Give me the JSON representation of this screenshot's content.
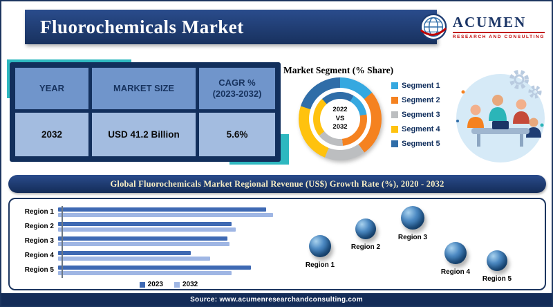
{
  "header": {
    "title": "Fluorochemicals Market",
    "logo": {
      "name": "ACUMEN",
      "subtitle": "RESEARCH AND CONSULTING"
    }
  },
  "summary_table": {
    "columns": [
      {
        "header": "YEAR",
        "value": "2032"
      },
      {
        "header": "MARKET SIZE",
        "value": "USD 41.2 Billion"
      },
      {
        "header": "CAGR %\n(2023-2032)",
        "value": "5.6%"
      }
    ]
  },
  "chart_data": [
    {
      "type": "pie",
      "donut": true,
      "title": "Market Segment (% Share)",
      "center_label": "2022\nVS\n2032",
      "labels": [
        "Segment 1",
        "Segment 2",
        "Segment 3",
        "Segment 4",
        "Segment 5"
      ],
      "values": [
        14,
        26,
        16,
        24,
        20
      ],
      "colors": [
        "#35A8E0",
        "#F58220",
        "#BCBEC0",
        "#FFC20E",
        "#2F6DA8"
      ],
      "legend_position": "right"
    },
    {
      "type": "bar",
      "orientation": "horizontal",
      "title": "Global Fluorochemicals Market Regional Revenue (US$) Growth Rate (%), 2020 - 2032",
      "categories": [
        "Region 1",
        "Region 2",
        "Region 3",
        "Region 4",
        "Region 5"
      ],
      "series": [
        {
          "name": "2023",
          "color": "#3E69B3",
          "values": [
            9.6,
            8.0,
            7.8,
            6.1,
            8.9
          ]
        },
        {
          "name": "2032",
          "color": "#9FB6E4",
          "values": [
            9.9,
            8.2,
            7.9,
            7.0,
            8.0
          ]
        }
      ],
      "xlim": [
        0,
        10
      ],
      "grid": false,
      "legend_position": "bottom"
    }
  ],
  "region_markers": [
    "Region 1",
    "Region 2",
    "Region 3",
    "Region 4",
    "Region 5"
  ],
  "footer": {
    "text": "Source: www.acumenresearchandconsulting.com"
  },
  "icons": {
    "logo": "globe-icon",
    "decorative": [
      "gear-icon",
      "team-illustration"
    ]
  },
  "colors": {
    "navy": "#16305C",
    "teal_accent": "#2EB8C0",
    "band_text": "#F5ECC4",
    "table_header_cell": "#7095CB",
    "table_value_cell": "#A3BCE0"
  }
}
